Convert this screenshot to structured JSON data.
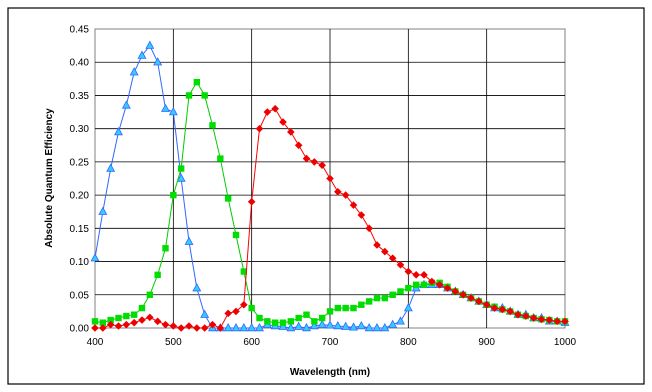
{
  "chart_data": {
    "type": "line",
    "xlabel": "Wavelength (nm)",
    "ylabel": "Absolute Quantum Efficiency",
    "xlim": [
      400,
      1000
    ],
    "ylim": [
      0,
      0.45
    ],
    "x_ticks": [
      "400",
      "500",
      "600",
      "700",
      "800",
      "900",
      "1000"
    ],
    "y_ticks": [
      "0.00",
      "0.05",
      "0.10",
      "0.15",
      "0.20",
      "0.25",
      "0.30",
      "0.35",
      "0.40",
      "0.45"
    ],
    "grid": true,
    "legend": "none",
    "series": [
      {
        "color": "#3366ff",
        "marker_fill": "#33ccff",
        "marker": "triangle",
        "x": [
          400,
          410,
          420,
          430,
          440,
          450,
          460,
          470,
          480,
          490,
          500,
          510,
          520,
          530,
          540,
          550,
          560,
          570,
          580,
          590,
          600,
          610,
          620,
          630,
          640,
          650,
          660,
          670,
          680,
          690,
          700,
          710,
          720,
          730,
          740,
          750,
          760,
          770,
          780,
          790,
          800,
          810,
          820,
          830,
          840,
          850,
          860,
          870,
          880,
          890,
          900,
          910,
          920,
          930,
          940,
          950,
          960,
          970,
          980,
          990,
          1000
        ],
        "y": [
          0.105,
          0.175,
          0.24,
          0.295,
          0.335,
          0.385,
          0.41,
          0.425,
          0.4,
          0.33,
          0.325,
          0.225,
          0.13,
          0.06,
          0.02,
          0.0,
          0.0,
          0.0,
          0.0,
          0.0,
          0.0,
          0.0,
          0.005,
          0.003,
          0.002,
          0.0,
          0.002,
          0.0,
          0.003,
          0.005,
          0.004,
          0.003,
          0.002,
          0.001,
          0.003,
          0.0,
          0.0,
          0.0,
          0.005,
          0.01,
          0.03,
          0.06,
          0.065,
          0.065,
          0.065,
          0.06,
          0.055,
          0.05,
          0.045,
          0.04,
          0.035,
          0.03,
          0.03,
          0.025,
          0.02,
          0.02,
          0.015,
          0.015,
          0.01,
          0.01,
          0.008
        ]
      },
      {
        "color": "#00cc00",
        "marker_fill": "#00dd00",
        "marker": "square",
        "x": [
          400,
          410,
          420,
          430,
          440,
          450,
          460,
          470,
          480,
          490,
          500,
          510,
          520,
          530,
          540,
          550,
          560,
          570,
          580,
          590,
          600,
          610,
          620,
          630,
          640,
          650,
          660,
          670,
          680,
          690,
          700,
          710,
          720,
          730,
          740,
          750,
          760,
          770,
          780,
          790,
          800,
          810,
          820,
          830,
          840,
          850,
          860,
          870,
          880,
          890,
          900,
          910,
          920,
          930,
          940,
          950,
          960,
          970,
          980,
          990,
          1000
        ],
        "y": [
          0.01,
          0.008,
          0.012,
          0.015,
          0.018,
          0.02,
          0.03,
          0.05,
          0.08,
          0.12,
          0.2,
          0.24,
          0.35,
          0.37,
          0.35,
          0.305,
          0.255,
          0.195,
          0.14,
          0.085,
          0.03,
          0.015,
          0.01,
          0.008,
          0.008,
          0.01,
          0.015,
          0.02,
          0.01,
          0.015,
          0.025,
          0.03,
          0.03,
          0.03,
          0.035,
          0.04,
          0.045,
          0.045,
          0.05,
          0.055,
          0.06,
          0.065,
          0.065,
          0.068,
          0.068,
          0.062,
          0.055,
          0.05,
          0.045,
          0.04,
          0.035,
          0.032,
          0.028,
          0.025,
          0.02,
          0.018,
          0.015,
          0.013,
          0.012,
          0.01,
          0.01
        ]
      },
      {
        "color": "#ff0000",
        "marker_fill": "#ee0000",
        "marker": "diamond",
        "x": [
          400,
          410,
          420,
          430,
          440,
          450,
          460,
          470,
          480,
          490,
          500,
          510,
          520,
          530,
          540,
          550,
          560,
          570,
          580,
          590,
          600,
          610,
          620,
          630,
          640,
          650,
          660,
          670,
          680,
          690,
          700,
          710,
          720,
          730,
          740,
          750,
          760,
          770,
          780,
          790,
          800,
          810,
          820,
          830,
          840,
          850,
          860,
          870,
          880,
          890,
          900,
          910,
          920,
          930,
          940,
          950,
          960,
          970,
          980,
          990,
          1000
        ],
        "y": [
          0.0,
          0.0,
          0.005,
          0.003,
          0.005,
          0.008,
          0.012,
          0.016,
          0.01,
          0.005,
          0.003,
          0.0,
          0.003,
          0.0,
          0.0,
          0.005,
          0.0,
          0.022,
          0.025,
          0.035,
          0.19,
          0.3,
          0.325,
          0.33,
          0.31,
          0.295,
          0.275,
          0.255,
          0.25,
          0.245,
          0.225,
          0.205,
          0.2,
          0.185,
          0.17,
          0.15,
          0.125,
          0.115,
          0.105,
          0.095,
          0.085,
          0.08,
          0.08,
          0.07,
          0.065,
          0.06,
          0.055,
          0.05,
          0.045,
          0.04,
          0.035,
          0.03,
          0.028,
          0.025,
          0.02,
          0.018,
          0.015,
          0.013,
          0.012,
          0.01,
          0.01
        ]
      }
    ]
  }
}
